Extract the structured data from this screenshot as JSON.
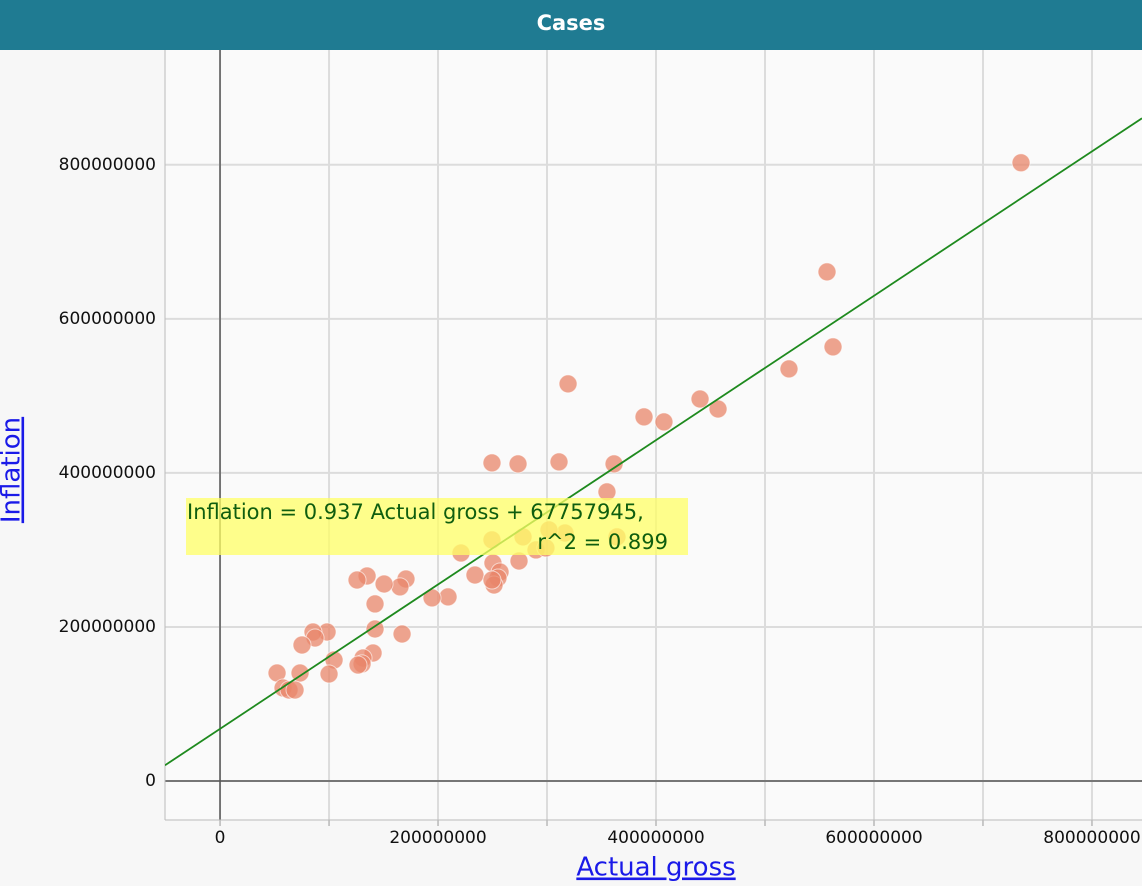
{
  "chart_data": {
    "type": "scatter",
    "title": "Cases",
    "x_label": "Actual gross",
    "y_label": "Inflation",
    "color": "#e8866a",
    "x": [
      734900000,
      556900000,
      562400000,
      522000000,
      319300000,
      389000000,
      407300000,
      440400000,
      456900000,
      249500000,
      273400000,
      311000000,
      361500000,
      355000000,
      316500000,
      301800000,
      278000000,
      249500000,
      364200000,
      221100000,
      289900000,
      299000000,
      233900000,
      250400000,
      256900000,
      255000000,
      251400000,
      249500000,
      274300000,
      209200000,
      194500000,
      170600000,
      165100000,
      150500000,
      134900000,
      125700000,
      142200000,
      142200000,
      167000000,
      98200000,
      85300000,
      87200000,
      75200000,
      140400000,
      131200000,
      130300000,
      126600000,
      104600000,
      100000000,
      73400000,
      52300000,
      57800000,
      63300000,
      68800000
    ],
    "values": [
      802600000,
      661000000,
      563600000,
      535000000,
      515600000,
      472700000,
      466200000,
      496000000,
      483000000,
      413000000,
      411700000,
      414300000,
      411700000,
      375300000,
      322000000,
      326000000,
      316900000,
      313000000,
      316900000,
      296000000,
      300000000,
      302600000,
      267500000,
      283000000,
      271400000,
      263600000,
      254500000,
      261000000,
      285700000,
      239000000,
      237700000,
      262300000,
      252000000,
      255800000,
      266200000,
      261000000,
      229900000,
      197400000,
      190900000,
      193500000,
      193500000,
      185700000,
      176600000,
      166200000,
      159700000,
      152000000,
      150600000,
      157100000,
      139000000,
      140300000,
      140300000,
      120800000,
      118200000,
      118200000
    ],
    "xlim": [
      -50500000,
      845900000
    ],
    "ylim": [
      -50600000,
      949000000
    ],
    "xticks": [
      0,
      200000000,
      400000000,
      600000000,
      800000000
    ],
    "xminor_ticks": [
      100000000,
      300000000,
      500000000,
      700000000
    ],
    "yticks": [
      0,
      200000000,
      400000000,
      600000000,
      800000000
    ],
    "grid": true,
    "fit": {
      "slope": 0.937,
      "intercept": 67757945,
      "color": "#1e8a1e",
      "label": [
        "Inflation = 0.937 Actual gross + 67757945,",
        "r^2 = 0.899"
      ]
    }
  }
}
